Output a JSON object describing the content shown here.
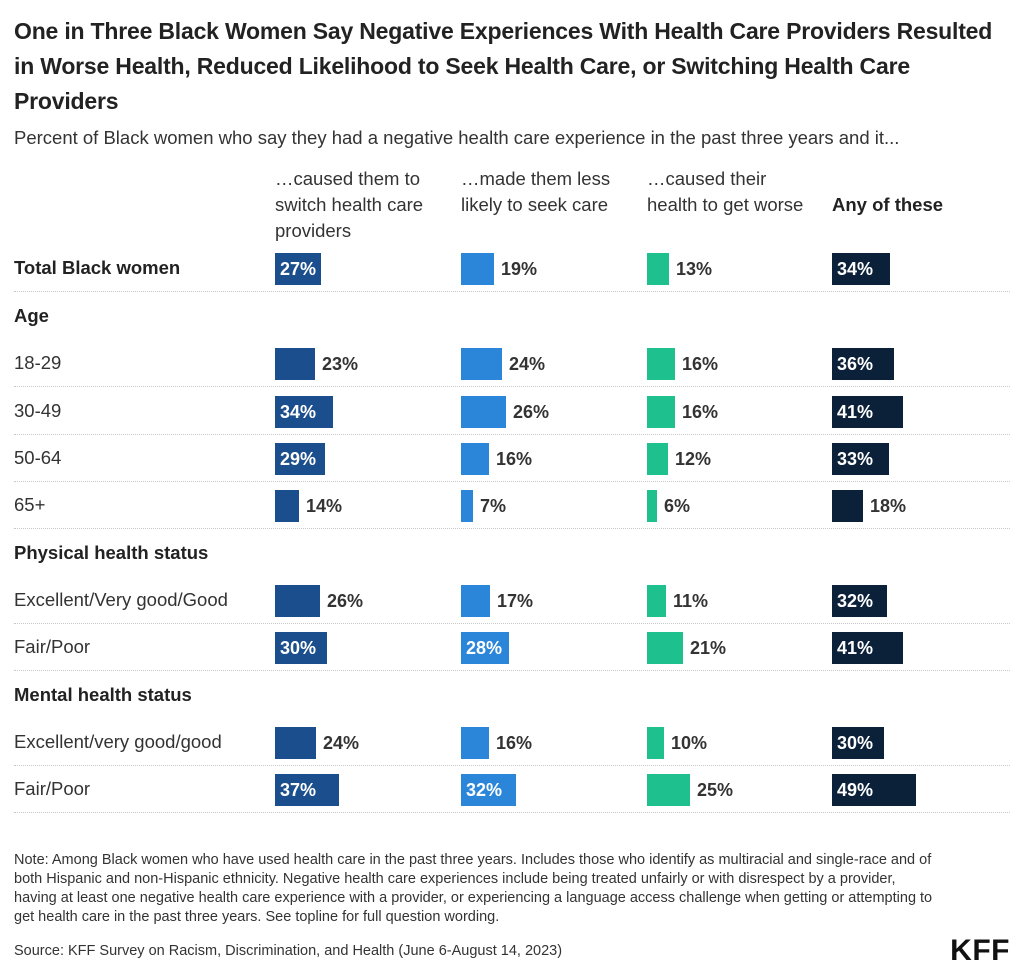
{
  "title": "One in Three Black Women Say Negative Experiences With Health Care Providers Resulted in Worse Health, Reduced Likelihood to Seek Health Care, or Switching Health Care Providers",
  "subtitle": "Percent of Black women who say they had a negative health care experience in the past three years and it...",
  "note": "Note: Among Black women who have used health care in the past three years. Includes those who identify as multiracial and single-race and of both Hispanic and non-Hispanic ethnicity. Negative health care experiences include being treated unfairly or with disrespect by a provider, having at least one negative health care experience with a provider, or experiencing a language access challenge when getting or attempting to get health care in the past three years. See topline for full question wording.",
  "source": "Source: KFF Survey on Racism, Discrimination, and Health (June 6-August 14, 2023)",
  "logo": "KFF",
  "colors": {
    "switch": "#1b4e8c",
    "less_likely": "#2b86d9",
    "worse": "#1ec08d",
    "any": "#0b2139"
  },
  "chart_data": {
    "type": "bar",
    "columns": [
      {
        "key": "switch",
        "label": "…caused them to switch health care providers"
      },
      {
        "key": "less_likely",
        "label": "…made them less likely to seek care"
      },
      {
        "key": "worse",
        "label": "…caused their health to get worse"
      },
      {
        "key": "any",
        "label": "Any of these"
      }
    ],
    "rows": [
      {
        "label": "Total Black women",
        "bold": true,
        "values": [
          27,
          19,
          13,
          34
        ]
      },
      {
        "label": "Age",
        "heading": true
      },
      {
        "label": "18-29",
        "values": [
          23,
          24,
          16,
          36
        ]
      },
      {
        "label": "30-49",
        "values": [
          34,
          26,
          16,
          41
        ]
      },
      {
        "label": "50-64",
        "values": [
          29,
          16,
          12,
          33
        ]
      },
      {
        "label": "65+",
        "values": [
          14,
          7,
          6,
          18
        ]
      },
      {
        "label": "Physical health status",
        "heading": true
      },
      {
        "label": "Excellent/Very good/Good",
        "values": [
          26,
          17,
          11,
          32
        ]
      },
      {
        "label": "Fair/Poor",
        "values": [
          30,
          28,
          21,
          41
        ]
      },
      {
        "label": "Mental health status",
        "heading": true
      },
      {
        "label": "Excellent/very good/good",
        "values": [
          24,
          16,
          10,
          30
        ]
      },
      {
        "label": "Fair/Poor",
        "values": [
          37,
          32,
          25,
          49
        ]
      }
    ],
    "value_suffix": "%"
  }
}
